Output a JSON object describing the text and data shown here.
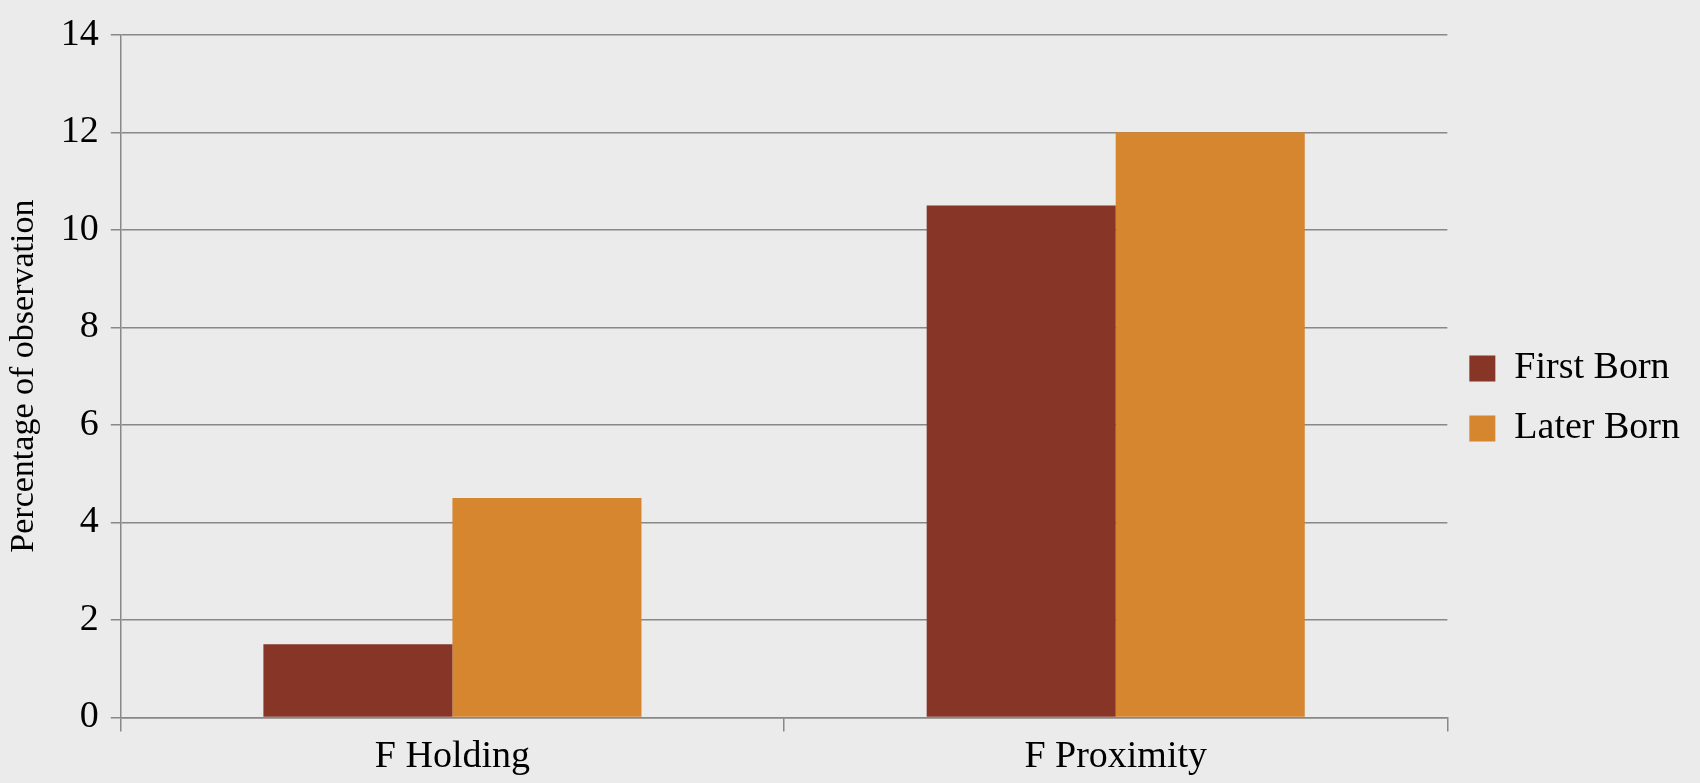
{
  "chart_data": {
    "type": "bar",
    "ylabel": "Percentage of observation",
    "categories": [
      "F Holding",
      "F Proximity"
    ],
    "series": [
      {
        "name": "First Born",
        "color": "#863526",
        "values": [
          1.5,
          10.5
        ]
      },
      {
        "name": "Later Born",
        "color": "#d5862e",
        "values": [
          4.5,
          12
        ]
      }
    ],
    "ylim": [
      0,
      14
    ],
    "yticks": [
      0,
      2,
      4,
      6,
      8,
      10,
      12,
      14
    ],
    "grid": "y",
    "legend": "right"
  }
}
